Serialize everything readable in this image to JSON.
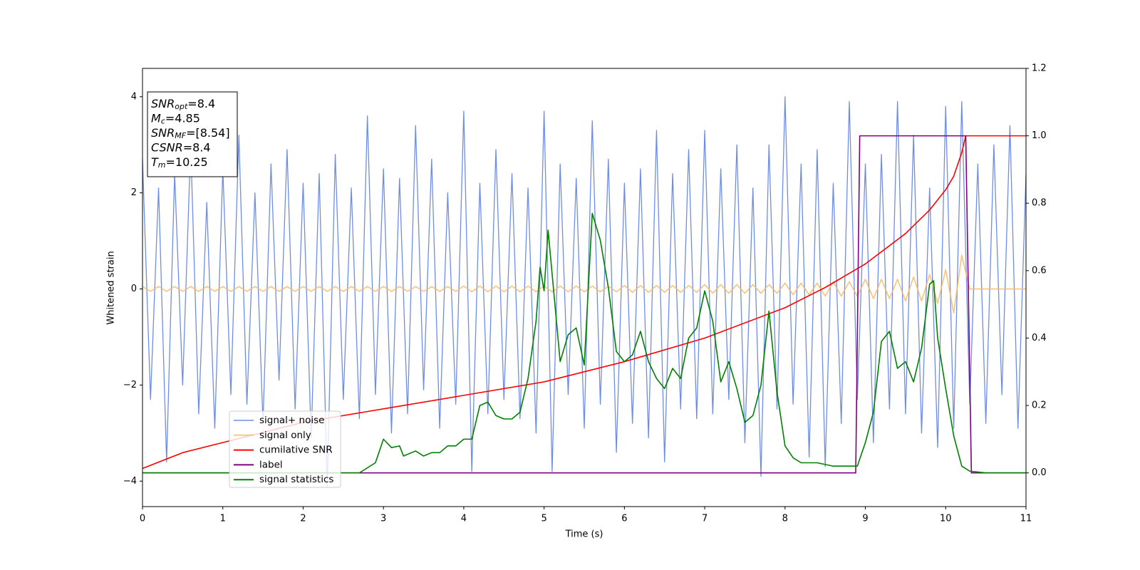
{
  "chart_data": {
    "type": "line",
    "xlabel": "Time (s)",
    "ylabel": "Whitened strain",
    "xlim": [
      0,
      11
    ],
    "xticks": [
      0,
      1,
      2,
      3,
      4,
      5,
      6,
      7,
      8,
      9,
      10,
      11
    ],
    "ylim": [
      -4.53,
      4.59
    ],
    "yticks": [
      {
        "value": -4,
        "label": "−4"
      },
      {
        "value": -2,
        "label": "−2"
      },
      0,
      2,
      4
    ],
    "y2lim": [
      -0.1,
      1.2
    ],
    "y2ticks": [
      {
        "value": 0,
        "label": "0.0"
      },
      {
        "value": 0.2,
        "label": "0.2"
      },
      {
        "value": 0.4,
        "label": "0.4"
      },
      {
        "value": 0.6,
        "label": "0.6"
      },
      {
        "value": 0.8,
        "label": "0.8"
      },
      {
        "value": 1.0,
        "label": "1.0"
      },
      {
        "value": 1.2,
        "label": "1.2"
      }
    ],
    "legend_loc": "lower left",
    "annotations": [
      {
        "text": "SNR",
        "sub": "opt",
        "after": "=8.4"
      },
      {
        "text": "M",
        "sub": "c",
        "after": "=4.85"
      },
      {
        "text": "SNR",
        "sub": "MF",
        "after": "=[8.54]"
      },
      {
        "text": "CSNR",
        "after": "=8.4"
      },
      {
        "text": "T",
        "sub": "m",
        "after": "=10.25"
      }
    ],
    "x": [
      0,
      0.1,
      0.2,
      0.3,
      0.4,
      0.5,
      0.6,
      0.7,
      0.8,
      0.9,
      1,
      1.1,
      1.2,
      1.3,
      1.4,
      1.5,
      1.6,
      1.7,
      1.8,
      1.9,
      2,
      2.1,
      2.2,
      2.3,
      2.4,
      2.5,
      2.6,
      2.7,
      2.8,
      2.9,
      3,
      3.1,
      3.2,
      3.3,
      3.4,
      3.5,
      3.6,
      3.7,
      3.8,
      3.9,
      4,
      4.1,
      4.2,
      4.3,
      4.4,
      4.5,
      4.6,
      4.7,
      4.8,
      4.9,
      5,
      5.1,
      5.2,
      5.3,
      5.4,
      5.5,
      5.6,
      5.7,
      5.8,
      5.9,
      6,
      6.1,
      6.2,
      6.3,
      6.4,
      6.5,
      6.6,
      6.7,
      6.8,
      6.9,
      7,
      7.1,
      7.2,
      7.3,
      7.4,
      7.5,
      7.6,
      7.7,
      7.8,
      7.9,
      8,
      8.1,
      8.2,
      8.3,
      8.4,
      8.5,
      8.6,
      8.7,
      8.8,
      8.9,
      9,
      9.1,
      9.2,
      9.3,
      9.4,
      9.5,
      9.6,
      9.7,
      9.8,
      9.9,
      10,
      10.1,
      10.2,
      10.3,
      10.4,
      10.5,
      10.6,
      10.7,
      10.8,
      10.9,
      11
    ],
    "series": [
      {
        "name": "signal+ noise",
        "color": "#6f8de6",
        "values": [
          2.7,
          -2.3,
          2.1,
          -3.6,
          2.4,
          -2.0,
          3.0,
          -2.6,
          1.8,
          -2.9,
          2.5,
          -2.2,
          3.2,
          -2.4,
          2.0,
          -2.8,
          2.6,
          -1.9,
          2.9,
          -2.5,
          2.2,
          -3.1,
          2.4,
          -4.1,
          2.8,
          -2.3,
          2.1,
          -2.7,
          3.6,
          -2.2,
          2.5,
          -3.0,
          2.3,
          -2.6,
          3.4,
          -2.1,
          2.7,
          -2.9,
          2.0,
          -2.4,
          3.7,
          -3.8,
          2.2,
          -2.6,
          2.9,
          -2.3,
          2.4,
          -2.7,
          2.1,
          -3.0,
          3.7,
          -3.8,
          2.6,
          -2.2,
          2.3,
          -2.9,
          3.5,
          -2.4,
          2.7,
          -3.4,
          2.2,
          -2.8,
          2.5,
          -3.1,
          3.3,
          -3.6,
          2.4,
          -2.5,
          2.9,
          -2.7,
          3.3,
          -2.6,
          2.5,
          -2.3,
          3.0,
          -3.2,
          2.1,
          -3.9,
          3.0,
          -2.5,
          4.0,
          -2.4,
          2.6,
          -3.5,
          2.9,
          -3.7,
          2.2,
          -2.8,
          3.9,
          -2.3,
          2.6,
          -3.2,
          2.8,
          -2.5,
          3.9,
          -2.6,
          3.2,
          -3.0,
          2.1,
          -3.3,
          3.8,
          -2.9,
          3.9,
          -2.4,
          2.6,
          -2.8,
          3.0,
          -2.2,
          3.4,
          -2.9,
          2.4
        ]
      },
      {
        "name": "signal only",
        "color": "#f7b863",
        "values": [
          0.05,
          -0.05,
          0.05,
          -0.05,
          0.05,
          -0.05,
          0.05,
          -0.05,
          0.05,
          -0.05,
          0.05,
          -0.05,
          0.05,
          -0.05,
          0.05,
          -0.05,
          0.05,
          -0.05,
          0.05,
          -0.05,
          0.05,
          -0.05,
          0.05,
          -0.05,
          0.05,
          -0.05,
          0.05,
          -0.05,
          0.05,
          -0.05,
          0.05,
          -0.05,
          0.05,
          -0.05,
          0.05,
          -0.05,
          0.05,
          -0.05,
          0.05,
          -0.05,
          0.06,
          -0.06,
          0.06,
          -0.06,
          0.06,
          -0.06,
          0.06,
          -0.06,
          0.06,
          -0.06,
          0.06,
          -0.06,
          0.06,
          -0.06,
          0.06,
          -0.06,
          0.06,
          -0.06,
          0.06,
          -0.06,
          0.07,
          -0.07,
          0.07,
          -0.07,
          0.07,
          -0.07,
          0.07,
          -0.07,
          0.07,
          -0.07,
          0.09,
          -0.09,
          0.09,
          -0.09,
          0.09,
          -0.09,
          0.09,
          -0.09,
          0.09,
          -0.09,
          0.12,
          -0.12,
          0.12,
          -0.12,
          0.12,
          -0.15,
          0.15,
          -0.15,
          0.15,
          -0.15,
          0.2,
          -0.2,
          0.2,
          -0.2,
          0.2,
          -0.25,
          0.25,
          -0.25,
          0.3,
          -0.3,
          0.4,
          -0.5,
          0.7,
          0,
          0,
          0,
          0,
          0,
          0,
          0,
          0
        ]
      },
      {
        "name": "cumilative SNR",
        "color": "#ff0000",
        "axis": "y2",
        "x": [
          0,
          0.5,
          1,
          2,
          3,
          4,
          5,
          6,
          7,
          8,
          8.5,
          9,
          9.5,
          9.8,
          10,
          10.1,
          10.2,
          10.25,
          11
        ],
        "values": [
          0.013,
          0.06,
          0.09,
          0.15,
          0.19,
          0.23,
          0.27,
          0.33,
          0.4,
          0.49,
          0.55,
          0.62,
          0.71,
          0.78,
          0.84,
          0.88,
          0.95,
          1.0,
          1.0
        ]
      },
      {
        "name": "label",
        "color": "#800080",
        "axis": "y2",
        "x": [
          0,
          8.88,
          8.93,
          10.25,
          10.32,
          11
        ],
        "values": [
          0,
          0,
          1,
          1,
          0,
          0
        ]
      },
      {
        "name": "signal statistics",
        "color": "#008000",
        "axis": "y2",
        "x": [
          0,
          2.7,
          2.9,
          3.0,
          3.1,
          3.2,
          3.25,
          3.4,
          3.5,
          3.6,
          3.7,
          3.8,
          3.9,
          4.0,
          4.1,
          4.2,
          4.3,
          4.4,
          4.5,
          4.6,
          4.7,
          4.8,
          4.9,
          4.95,
          5.0,
          5.05,
          5.1,
          5.2,
          5.3,
          5.4,
          5.5,
          5.6,
          5.7,
          5.8,
          5.9,
          6.0,
          6.1,
          6.2,
          6.3,
          6.4,
          6.5,
          6.6,
          6.7,
          6.8,
          6.9,
          7.0,
          7.1,
          7.2,
          7.3,
          7.4,
          7.5,
          7.6,
          7.7,
          7.8,
          7.9,
          8.0,
          8.1,
          8.2,
          8.4,
          8.6,
          8.9,
          9.0,
          9.1,
          9.2,
          9.3,
          9.4,
          9.5,
          9.6,
          9.7,
          9.8,
          9.85,
          9.9,
          10.0,
          10.1,
          10.2,
          10.3,
          10.5,
          11
        ],
        "values": [
          0.0,
          0.0,
          0.03,
          0.1,
          0.075,
          0.08,
          0.05,
          0.065,
          0.05,
          0.06,
          0.06,
          0.08,
          0.08,
          0.1,
          0.1,
          0.2,
          0.21,
          0.17,
          0.16,
          0.16,
          0.18,
          0.28,
          0.45,
          0.61,
          0.54,
          0.72,
          0.59,
          0.33,
          0.41,
          0.43,
          0.32,
          0.77,
          0.69,
          0.55,
          0.36,
          0.33,
          0.35,
          0.42,
          0.33,
          0.28,
          0.25,
          0.31,
          0.28,
          0.4,
          0.43,
          0.54,
          0.45,
          0.27,
          0.33,
          0.25,
          0.15,
          0.17,
          0.26,
          0.48,
          0.24,
          0.08,
          0.045,
          0.03,
          0.03,
          0.02,
          0.02,
          0.09,
          0.18,
          0.39,
          0.42,
          0.31,
          0.33,
          0.27,
          0.37,
          0.56,
          0.57,
          0.4,
          0.25,
          0.11,
          0.02,
          0.005,
          0.0,
          0.0
        ]
      }
    ]
  }
}
